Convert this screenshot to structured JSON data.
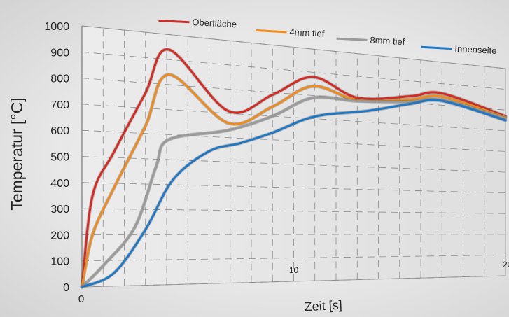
{
  "chart_data": {
    "type": "line",
    "title": "",
    "xlabel": "Zeit [s]",
    "ylabel": "Temperatur [°C]",
    "xlim": [
      0,
      20
    ],
    "ylim": [
      0,
      1000
    ],
    "grid": true,
    "legend_position": "top",
    "x_ticks": [
      {
        "value": 0,
        "label": "0"
      },
      {
        "value": 10,
        "label": "10"
      },
      {
        "value": 20,
        "label": "20"
      }
    ],
    "y_ticks": [
      {
        "value": 0,
        "label": "0"
      },
      {
        "value": 100,
        "label": "100"
      },
      {
        "value": 200,
        "label": "200"
      },
      {
        "value": 300,
        "label": "300"
      },
      {
        "value": 400,
        "label": "400"
      },
      {
        "value": 500,
        "label": "500"
      },
      {
        "value": 600,
        "label": "600"
      },
      {
        "value": 700,
        "label": "700"
      },
      {
        "value": 800,
        "label": "800"
      },
      {
        "value": 900,
        "label": "900"
      },
      {
        "value": 1000,
        "label": "1000"
      }
    ],
    "series": [
      {
        "name": "Oberfläche",
        "color": "#d42a22",
        "x": [
          0,
          0.5,
          1.5,
          3,
          4.1,
          6.9,
          9,
          10.9,
          13,
          15.5,
          17,
          20
        ],
        "y": [
          0,
          350,
          520,
          760,
          940,
          710,
          790,
          880,
          805,
          830,
          855,
          770
        ]
      },
      {
        "name": "4mm tief",
        "color": "#ef8a1c",
        "x": [
          0,
          0.5,
          1.5,
          3,
          4.1,
          6.9,
          9,
          10.9,
          13,
          15.5,
          17,
          20
        ],
        "y": [
          0,
          200,
          380,
          630,
          840,
          660,
          740,
          840,
          795,
          815,
          840,
          765
        ]
      },
      {
        "name": "8mm tief",
        "color": "#9a9a9a",
        "x": [
          0,
          1,
          2.5,
          3.5,
          4.1,
          6.9,
          9,
          10.9,
          13,
          15.5,
          17,
          20
        ],
        "y": [
          0,
          80,
          230,
          470,
          580,
          630,
          700,
          790,
          790,
          805,
          825,
          760
        ]
      },
      {
        "name": "Innenseite",
        "color": "#1f77c4",
        "x": [
          0,
          1.5,
          3,
          4.3,
          6,
          7.5,
          9,
          11,
          13.5,
          15.5,
          17,
          20
        ],
        "y": [
          0,
          50,
          220,
          420,
          540,
          580,
          630,
          710,
          750,
          795,
          820,
          750
        ]
      }
    ]
  }
}
